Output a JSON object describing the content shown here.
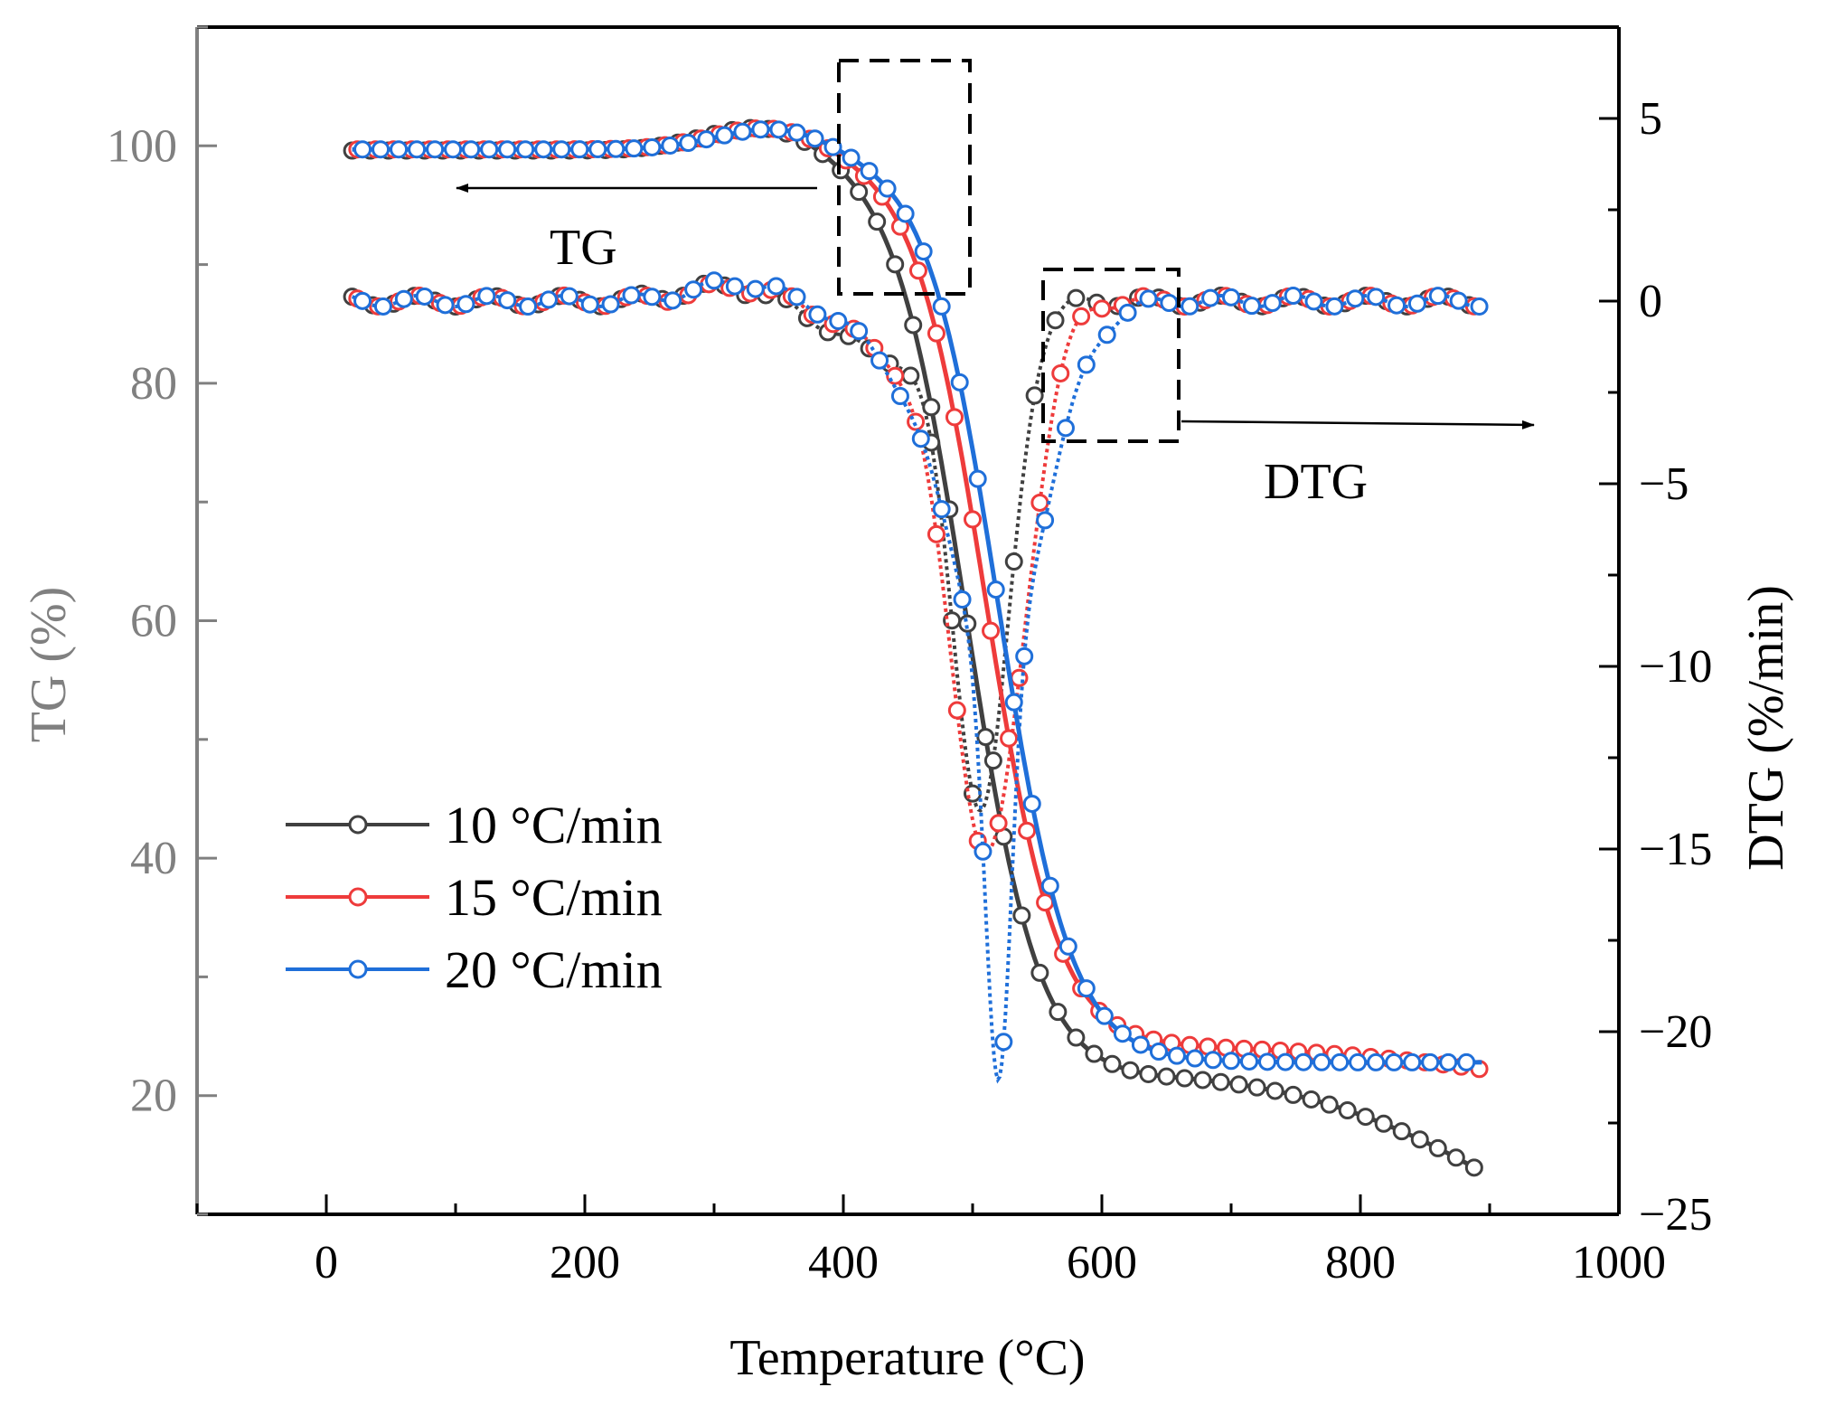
{
  "chart_data": {
    "type": "line",
    "x_axis": {
      "label": "Temperature (°C)",
      "range": [
        -100,
        1000
      ],
      "ticks": [
        0,
        200,
        400,
        600,
        800,
        1000
      ]
    },
    "y_left": {
      "label": "TG (%)",
      "range": [
        10,
        110
      ],
      "ticks": [
        20,
        40,
        60,
        80,
        100
      ],
      "color": "#808080"
    },
    "y_right": {
      "label": "DTG (%/min)",
      "range": [
        -25,
        7.5
      ],
      "ticks": [
        5,
        0,
        -5,
        -10,
        -15,
        -20,
        -25
      ]
    },
    "tick_labels": {
      "x": [
        "0",
        "200",
        "400",
        "600",
        "800",
        "1000"
      ],
      "y_left": [
        "20",
        "40",
        "60",
        "80",
        "100"
      ],
      "y_right": [
        "5",
        "0",
        "−5",
        "−10",
        "−15",
        "−20",
        "−25"
      ]
    },
    "annotations": {
      "tg": "TG",
      "dtg": "DTG"
    },
    "legend": {
      "position": "lower-left"
    },
    "series": [
      {
        "name": "10 °C/min",
        "color": "#404040",
        "tg": {
          "Tstart": 20,
          "Tend": 895,
          "peak": 340,
          "T0": 495,
          "w": 28,
          "bump": [
            {
              "c": 340,
              "w": 45,
              "a": 2.2
            }
          ],
          "top": 99.6,
          "bottom": 21.3,
          "slope": 0.0013
        },
        "dtg": {
          "Tstart": 20,
          "Tend": 895,
          "base": 0,
          "dips": [
            {
              "c": 507,
              "w": 22,
              "a": -13.4
            },
            {
              "c": 440,
              "w": 45,
              "a": -1.5
            }
          ],
          "bump": [
            {
              "c": 310,
              "w": 35,
              "a": 0.4
            }
          ]
        }
      },
      {
        "name": "15 °C/min",
        "color": "#ee3b3b",
        "tg": {
          "Tstart": 20,
          "Tend": 895,
          "peak": 340,
          "T0": 510,
          "w": 28,
          "bump": [
            {
              "c": 345,
              "w": 45,
              "a": 2.0
            }
          ],
          "top": 99.7,
          "bottom": 24.0,
          "slope": 0.0003
        },
        "dtg": {
          "Tstart": 20,
          "Tend": 895,
          "base": 0,
          "dips": [
            {
              "c": 512,
              "w": 28,
              "a": -14.6
            },
            {
              "c": 450,
              "w": 45,
              "a": -1.4
            }
          ],
          "bump": [
            {
              "c": 320,
              "w": 35,
              "a": 0.4
            }
          ]
        }
      },
      {
        "name": "20 °C/min",
        "color": "#1f6fd9",
        "tg": {
          "Tstart": 20,
          "Tend": 895,
          "peak": 350,
          "T0": 520,
          "w": 28,
          "bump": [
            {
              "c": 350,
              "w": 45,
              "a": 1.9
            }
          ],
          "top": 99.7,
          "bottom": 22.8,
          "slope": 0.0
        },
        "dtg": {
          "Tstart": 20,
          "Tend": 895,
          "base": 0,
          "dips": [
            {
              "c": 520,
              "w": 10,
              "a": -12.0
            },
            {
              "c": 520,
              "w": 38,
              "a": -9.0
            },
            {
              "c": 455,
              "w": 45,
              "a": -1.3
            }
          ],
          "bump": [
            {
              "c": 320,
              "w": 35,
              "a": 0.5
            }
          ]
        }
      }
    ]
  }
}
